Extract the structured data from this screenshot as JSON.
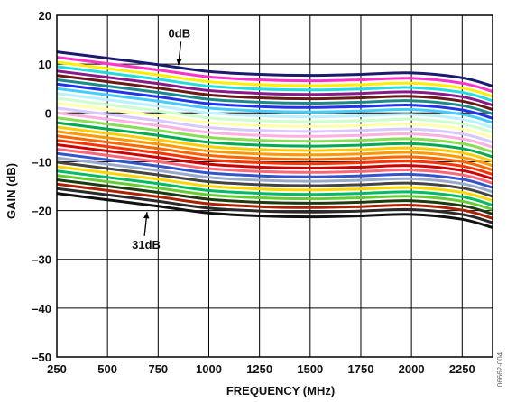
{
  "chart_data": {
    "type": "line",
    "xlabel": "FREQUENCY (MHz)",
    "ylabel": "GAIN (dB)",
    "xlim": [
      250,
      2400
    ],
    "ylim": [
      -50,
      20
    ],
    "x_ticks": [
      250,
      500,
      750,
      1000,
      1250,
      1500,
      1750,
      2000,
      2250
    ],
    "x_tick_labels": [
      "250",
      "500",
      "750",
      "1000",
      "1250",
      "1500",
      "1750",
      "2000",
      "2250"
    ],
    "y_ticks": [
      20,
      10,
      0,
      -10,
      -20,
      -30,
      -40,
      -50
    ],
    "y_tick_labels": [
      "20",
      "10",
      "0",
      "–10",
      "–20",
      "–30",
      "–40",
      "–50"
    ],
    "grid": true,
    "x": [
      250,
      500,
      750,
      1000,
      1250,
      1500,
      1750,
      2000,
      2250,
      2400
    ],
    "base_curve": [
      12.5,
      11.2,
      9.9,
      8.5,
      7.9,
      7.7,
      7.9,
      8.2,
      7.2,
      5.5
    ],
    "series": [
      {
        "values": [
          12.5,
          11.2,
          9.9,
          8.5,
          7.9,
          7.7,
          7.9,
          8.2,
          7.2,
          5.5
        ],
        "color": "#1a1a6e"
      },
      {
        "values": [
          11.4,
          10.1,
          8.8,
          7.4,
          6.8,
          6.6,
          6.8,
          7.1,
          6.1,
          4.4
        ],
        "color": "#ff33cc"
      },
      {
        "values": [
          10.4,
          9.1,
          7.8,
          6.4,
          5.8,
          5.6,
          5.8,
          6.1,
          5.1,
          3.4
        ],
        "color": "#ffee00"
      },
      {
        "values": [
          9.5,
          8.2,
          6.9,
          5.5,
          4.9,
          4.7,
          4.9,
          5.2,
          4.2,
          2.5
        ],
        "color": "#22dddd"
      },
      {
        "values": [
          8.6,
          7.3,
          6.0,
          4.6,
          4.0,
          3.8,
          4.0,
          4.3,
          3.3,
          1.6
        ],
        "color": "#8a1a8a"
      },
      {
        "values": [
          7.7,
          6.4,
          5.1,
          3.7,
          3.1,
          2.9,
          3.1,
          3.4,
          2.4,
          0.7
        ],
        "color": "#6b1a1a"
      },
      {
        "values": [
          6.8,
          5.5,
          4.2,
          2.8,
          2.2,
          2.0,
          2.2,
          2.5,
          1.5,
          -0.2
        ],
        "color": "#1a8a8a"
      },
      {
        "values": [
          5.9,
          4.6,
          3.3,
          1.9,
          1.3,
          1.1,
          1.3,
          1.6,
          0.6,
          -1.1
        ],
        "color": "#2233ee"
      },
      {
        "values": [
          5.0,
          3.7,
          2.4,
          1.0,
          0.4,
          0.2,
          0.4,
          0.7,
          -0.3,
          -2.0
        ],
        "color": "#44ccff"
      },
      {
        "values": [
          4.0,
          2.7,
          1.4,
          0.0,
          -0.6,
          -0.8,
          -0.6,
          -0.3,
          -1.3,
          -3.0
        ],
        "color": "#bbf0ff"
      },
      {
        "values": [
          3.0,
          1.7,
          0.4,
          -1.0,
          -1.6,
          -1.8,
          -1.6,
          -1.3,
          -2.3,
          -4.0
        ],
        "color": "#ccffcc"
      },
      {
        "values": [
          2.0,
          0.7,
          -0.6,
          -2.0,
          -2.6,
          -2.8,
          -2.6,
          -2.3,
          -3.3,
          -5.0
        ],
        "color": "#ffffaa"
      },
      {
        "values": [
          1.0,
          -0.3,
          -1.6,
          -3.0,
          -3.6,
          -3.8,
          -3.6,
          -3.3,
          -4.3,
          -6.0
        ],
        "color": "#d9c7ff"
      },
      {
        "values": [
          0.0,
          -1.3,
          -2.6,
          -4.0,
          -4.6,
          -4.8,
          -4.6,
          -4.3,
          -5.3,
          -7.0
        ],
        "color": "#ffb0e0"
      },
      {
        "values": [
          -1.0,
          -2.3,
          -3.6,
          -5.0,
          -5.6,
          -5.8,
          -5.6,
          -5.3,
          -6.3,
          -8.0
        ],
        "color": "#88dd55"
      },
      {
        "values": [
          -2.0,
          -3.3,
          -4.6,
          -6.0,
          -6.6,
          -6.8,
          -6.6,
          -6.3,
          -7.3,
          -9.0
        ],
        "color": "#00aa55"
      },
      {
        "values": [
          -2.9,
          -4.2,
          -5.5,
          -6.9,
          -7.5,
          -7.7,
          -7.5,
          -7.2,
          -8.2,
          -9.9
        ],
        "color": "#ffcc00"
      },
      {
        "values": [
          -3.8,
          -5.1,
          -6.4,
          -7.8,
          -8.4,
          -8.6,
          -8.4,
          -8.1,
          -9.1,
          -10.8
        ],
        "color": "#ff9900"
      },
      {
        "values": [
          -4.7,
          -6.0,
          -7.3,
          -8.7,
          -9.3,
          -9.5,
          -9.3,
          -9.0,
          -10.0,
          -11.7
        ],
        "color": "#ff6600"
      },
      {
        "values": [
          -5.6,
          -6.9,
          -8.2,
          -9.6,
          -10.2,
          -10.4,
          -10.2,
          -9.9,
          -10.9,
          -12.6
        ],
        "color": "#ff3300"
      },
      {
        "values": [
          -6.5,
          -7.8,
          -9.1,
          -10.5,
          -11.1,
          -11.3,
          -11.1,
          -10.8,
          -11.8,
          -13.5
        ],
        "color": "#cc0000"
      },
      {
        "values": [
          -7.4,
          -8.7,
          -10.0,
          -11.4,
          -12.0,
          -12.2,
          -12.0,
          -11.7,
          -12.7,
          -14.4
        ],
        "color": "#ff6677"
      },
      {
        "values": [
          -8.3,
          -9.6,
          -10.9,
          -12.3,
          -12.9,
          -13.1,
          -12.9,
          -12.6,
          -13.6,
          -15.3
        ],
        "color": "#3355cc"
      },
      {
        "values": [
          -9.2,
          -10.5,
          -11.8,
          -13.2,
          -13.8,
          -14.0,
          -13.8,
          -13.5,
          -14.5,
          -16.2
        ],
        "color": "#99aacc"
      },
      {
        "values": [
          -10.1,
          -11.4,
          -12.7,
          -14.1,
          -14.7,
          -14.9,
          -14.7,
          -14.4,
          -15.4,
          -17.1
        ],
        "color": "#444444"
      },
      {
        "values": [
          -11.0,
          -12.3,
          -13.6,
          -15.0,
          -15.6,
          -15.8,
          -15.6,
          -15.3,
          -16.3,
          -18.0
        ],
        "color": "#ffd700"
      },
      {
        "values": [
          -11.9,
          -13.2,
          -14.5,
          -15.9,
          -16.5,
          -16.7,
          -16.5,
          -16.2,
          -17.2,
          -18.9
        ],
        "color": "#00bb66"
      },
      {
        "values": [
          -12.8,
          -14.1,
          -15.4,
          -16.8,
          -17.4,
          -17.6,
          -17.4,
          -17.1,
          -18.1,
          -19.8
        ],
        "color": "#66cc33"
      },
      {
        "values": [
          -13.7,
          -15.0,
          -16.3,
          -17.7,
          -18.3,
          -18.5,
          -18.3,
          -18.0,
          -19.0,
          -20.7
        ],
        "color": "#1e3a10"
      },
      {
        "values": [
          -14.6,
          -15.9,
          -17.2,
          -18.6,
          -19.2,
          -19.4,
          -19.2,
          -18.9,
          -19.9,
          -21.6
        ],
        "color": "#aa2200"
      },
      {
        "values": [
          -15.5,
          -16.8,
          -18.1,
          -19.5,
          -20.1,
          -20.3,
          -20.1,
          -19.8,
          -20.8,
          -22.5
        ],
        "color": "#2a2a2a"
      },
      {
        "values": [
          -16.5,
          -17.8,
          -19.1,
          -20.5,
          -21.1,
          -21.3,
          -21.1,
          -20.8,
          -21.8,
          -23.5
        ],
        "color": "#111111"
      }
    ],
    "annotations": [
      {
        "text": "0dB",
        "x": 800,
        "y": 15.5,
        "arrow_to": [
          850,
          9.8
        ]
      },
      {
        "text": "31dB",
        "x": 620,
        "y": -27.8,
        "arrow_to": [
          695,
          -20.3
        ]
      }
    ],
    "figure_id": "06662-004"
  }
}
